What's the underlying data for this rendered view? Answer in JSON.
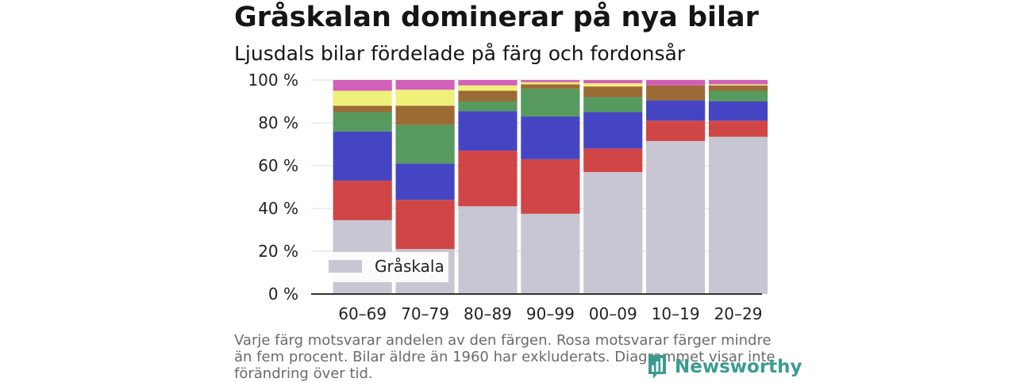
{
  "header": {
    "title": "Gråskalan dominerar på nya bilar",
    "subtitle": "Ljusdals bilar fördelade på färg och fordonsår"
  },
  "footer": {
    "note": "Varje färg motsvarar andelen av den färgen. Rosa motsvarar färger mindre än fem procent. Bilar äldre än 1960 har exkluderats. Diagrammet visar inte förändring över tid.",
    "brand": "Newsworthy"
  },
  "colors": {
    "gray": "#c8c6d2",
    "red": "#d04545",
    "blue": "#4545c4",
    "green": "#569a5d",
    "brown": "#9c6b35",
    "yellow": "#eef07a",
    "pink": "#d25fb8",
    "brand": "#3a9c8e"
  },
  "chart_data": {
    "type": "bar",
    "stacked": true,
    "categories": [
      "60–69",
      "70–79",
      "80–89",
      "90–99",
      "00–09",
      "10–19",
      "20–29"
    ],
    "series": [
      {
        "name": "Gråskala",
        "color_key": "gray",
        "values": [
          34.5,
          21,
          41,
          37.5,
          57,
          71.5,
          73.5
        ]
      },
      {
        "color_key": "red",
        "values": [
          18.5,
          23,
          26,
          25.5,
          11,
          9.5,
          7.5
        ]
      },
      {
        "color_key": "blue",
        "values": [
          23,
          17,
          18.5,
          20,
          17,
          9.5,
          9
        ]
      },
      {
        "color_key": "green",
        "values": [
          9,
          18,
          4.5,
          13,
          7,
          0,
          5
        ]
      },
      {
        "color_key": "brown",
        "values": [
          3,
          9,
          5,
          2,
          5,
          7,
          2.5
        ]
      },
      {
        "color_key": "yellow",
        "values": [
          7,
          7.5,
          2.5,
          1,
          1.5,
          0,
          0.5
        ]
      },
      {
        "color_key": "pink",
        "values": [
          5,
          4.5,
          2.5,
          1,
          1.5,
          2.5,
          2
        ]
      }
    ],
    "ylim": [
      0,
      100
    ],
    "yticks": [
      0,
      20,
      40,
      60,
      80,
      100
    ],
    "ytick_labels": [
      "0 %",
      "20 %",
      "40 %",
      "60 %",
      "80 %",
      "100 %"
    ],
    "grid": true,
    "legend": {
      "position": "bottom-left",
      "entries": [
        "Gråskala"
      ]
    }
  }
}
